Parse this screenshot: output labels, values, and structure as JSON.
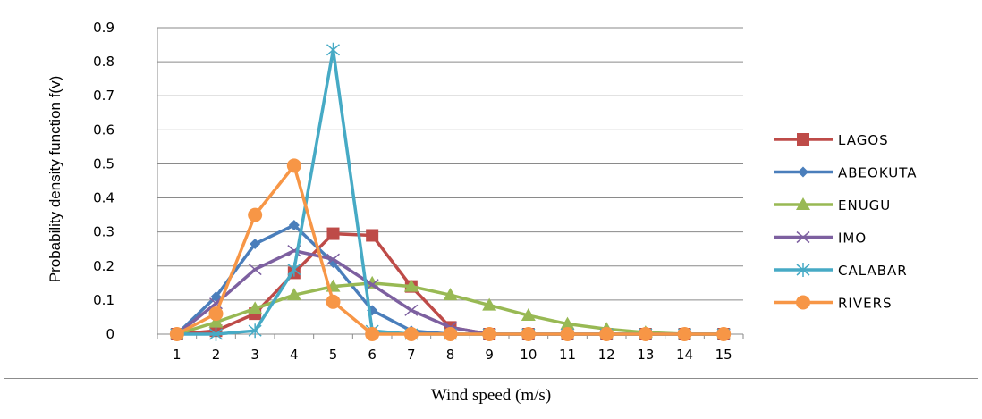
{
  "chart_data": {
    "type": "line",
    "xlabel": "Wind speed (m/s)",
    "ylabel": "Probability density function f(v)",
    "x": [
      1,
      2,
      3,
      4,
      5,
      6,
      7,
      8,
      9,
      10,
      11,
      12,
      13,
      14,
      15
    ],
    "ylim": [
      0,
      0.9
    ],
    "yticks": [
      "0",
      "0.1",
      "0.2",
      "0.3",
      "0.4",
      "0.5",
      "0.6",
      "0.7",
      "0.8",
      "0.9"
    ],
    "grid": "horizontal",
    "legend_position": "right",
    "series": [
      {
        "name": "LAGOS",
        "color": "#be4b48",
        "marker": "square",
        "values": [
          0,
          0.01,
          0.06,
          0.18,
          0.295,
          0.29,
          0.14,
          0.02,
          0,
          0,
          0,
          0,
          0,
          0,
          0
        ]
      },
      {
        "name": "ABEOKUTA",
        "color": "#4a7ebb",
        "marker": "diamond",
        "values": [
          0,
          0.11,
          0.265,
          0.32,
          0.21,
          0.07,
          0.01,
          0,
          0,
          0,
          0,
          0,
          0,
          0,
          0
        ]
      },
      {
        "name": "ENUGU",
        "color": "#98b954",
        "marker": "triangle",
        "values": [
          0,
          0.035,
          0.075,
          0.115,
          0.14,
          0.15,
          0.14,
          0.115,
          0.085,
          0.055,
          0.03,
          0.015,
          0.005,
          0,
          0
        ]
      },
      {
        "name": "IMO",
        "color": "#7d60a0",
        "marker": "x",
        "values": [
          0,
          0.09,
          0.19,
          0.245,
          0.22,
          0.145,
          0.07,
          0.02,
          0,
          0,
          0,
          0,
          0,
          0,
          0
        ]
      },
      {
        "name": "CALABAR",
        "color": "#46aac5",
        "marker": "star",
        "values": [
          0,
          0,
          0.01,
          0.19,
          0.835,
          0.01,
          0,
          0,
          0,
          0,
          0,
          0,
          0,
          0,
          0
        ]
      },
      {
        "name": "RIVERS",
        "color": "#f79646",
        "marker": "circle",
        "values": [
          0,
          0.06,
          0.35,
          0.495,
          0.095,
          0,
          0,
          0,
          0,
          0,
          0,
          0,
          0,
          0,
          0
        ]
      }
    ]
  }
}
